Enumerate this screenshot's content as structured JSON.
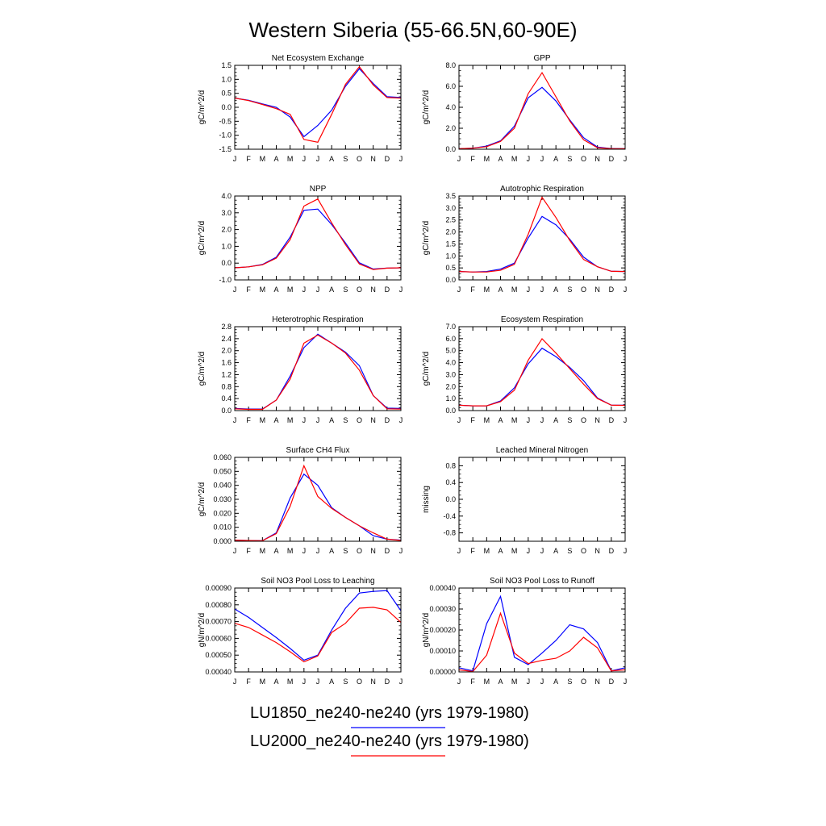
{
  "figure": {
    "title": "Western Siberia (55-66.5N,60-90E)",
    "months": [
      "J",
      "F",
      "M",
      "A",
      "M",
      "J",
      "J",
      "A",
      "S",
      "O",
      "N",
      "D",
      "J"
    ],
    "colors": {
      "LU1850": "#0000ff",
      "LU2000": "#ff0000"
    }
  },
  "legend": [
    {
      "label": "LU1850_ne240-ne240 (yrs 1979-1980)",
      "color": "#0000ff"
    },
    {
      "label": "LU2000_ne240-ne240 (yrs 1979-1980)",
      "color": "#ff0000"
    }
  ],
  "chart_data": [
    {
      "type": "line",
      "title": "Net Ecosystem Exchange",
      "ylabel": "gC/m^2/d",
      "ylim": [
        -1.5,
        1.5
      ],
      "yticks": [
        -1.5,
        -1.0,
        -0.5,
        0.0,
        0.5,
        1.0,
        1.5
      ],
      "ytick_labels": [
        "-1.5",
        "-1.0",
        "-0.5",
        "0.0",
        "0.5",
        "1.0",
        "1.5"
      ],
      "series": [
        {
          "values": [
            0.33,
            0.25,
            0.12,
            0.0,
            -0.35,
            -1.05,
            -0.65,
            -0.1,
            0.75,
            1.38,
            0.85,
            0.38,
            0.35
          ],
          "color": "#0000ff"
        },
        {
          "values": [
            0.33,
            0.24,
            0.1,
            -0.05,
            -0.25,
            -1.15,
            -1.25,
            -0.25,
            0.82,
            1.45,
            0.8,
            0.35,
            0.33
          ],
          "color": "#ff0000"
        }
      ]
    },
    {
      "type": "line",
      "title": "GPP",
      "ylabel": "gC/m^2/d",
      "ylim": [
        0,
        8
      ],
      "yticks": [
        0,
        2,
        4,
        6,
        8
      ],
      "ytick_labels": [
        "0.0",
        "2.0",
        "4.0",
        "6.0",
        "8.0"
      ],
      "series": [
        {
          "values": [
            0.05,
            0.1,
            0.3,
            0.8,
            2.2,
            4.9,
            5.9,
            4.6,
            2.8,
            1.1,
            0.2,
            0.06,
            0.05
          ],
          "color": "#0000ff"
        },
        {
          "values": [
            0.05,
            0.1,
            0.25,
            0.75,
            2.0,
            5.3,
            7.3,
            5.0,
            2.7,
            0.9,
            0.15,
            0.05,
            0.05
          ],
          "color": "#ff0000"
        }
      ]
    },
    {
      "type": "line",
      "title": "NPP",
      "ylabel": "gC/m^2/d",
      "ylim": [
        -1,
        4
      ],
      "yticks": [
        -1,
        0,
        1,
        2,
        3,
        4
      ],
      "ytick_labels": [
        "-1.0",
        "0.0",
        "1.0",
        "2.0",
        "3.0",
        "4.0"
      ],
      "series": [
        {
          "values": [
            -0.28,
            -0.22,
            -0.08,
            0.35,
            1.55,
            3.15,
            3.22,
            2.3,
            1.2,
            0.02,
            -0.35,
            -0.3,
            -0.28
          ],
          "color": "#0000ff"
        },
        {
          "values": [
            -0.28,
            -0.22,
            -0.1,
            0.3,
            1.4,
            3.4,
            3.82,
            2.4,
            1.1,
            -0.05,
            -0.38,
            -0.3,
            -0.28
          ],
          "color": "#ff0000"
        }
      ]
    },
    {
      "type": "line",
      "title": "Autotrophic Respiration",
      "ylabel": "gC/m^2/d",
      "ylim": [
        0,
        3.5
      ],
      "yticks": [
        0,
        0.5,
        1.0,
        1.5,
        2.0,
        2.5,
        3.0,
        3.5
      ],
      "ytick_labels": [
        "0.0",
        "0.5",
        "1.0",
        "1.5",
        "2.0",
        "2.5",
        "3.0",
        "3.5"
      ],
      "series": [
        {
          "values": [
            0.35,
            0.33,
            0.35,
            0.45,
            0.7,
            1.75,
            2.65,
            2.3,
            1.7,
            0.95,
            0.55,
            0.36,
            0.35
          ],
          "color": "#0000ff"
        },
        {
          "values": [
            0.35,
            0.33,
            0.33,
            0.4,
            0.65,
            1.9,
            3.45,
            2.6,
            1.65,
            0.85,
            0.55,
            0.36,
            0.35
          ],
          "color": "#ff0000"
        }
      ]
    },
    {
      "type": "line",
      "title": "Heterotrophic Respiration",
      "ylabel": "gC/m^2/d",
      "ylim": [
        0,
        2.8
      ],
      "yticks": [
        0,
        0.4,
        0.8,
        1.2,
        1.6,
        2.0,
        2.4,
        2.8
      ],
      "ytick_labels": [
        "0.0",
        "0.4",
        "0.8",
        "1.2",
        "1.6",
        "2.0",
        "2.4",
        "2.8"
      ],
      "series": [
        {
          "values": [
            0.07,
            0.05,
            0.05,
            0.35,
            1.15,
            2.1,
            2.55,
            2.25,
            1.95,
            1.5,
            0.5,
            0.08,
            0.07
          ],
          "color": "#0000ff"
        },
        {
          "values": [
            0.06,
            0.04,
            0.04,
            0.35,
            1.05,
            2.25,
            2.52,
            2.25,
            1.92,
            1.35,
            0.5,
            0.06,
            0.05
          ],
          "color": "#ff0000"
        }
      ]
    },
    {
      "type": "line",
      "title": "Ecosystem Respiration",
      "ylabel": "gC/m^2/d",
      "ylim": [
        0,
        7
      ],
      "yticks": [
        0,
        1,
        2,
        3,
        4,
        5,
        6,
        7
      ],
      "ytick_labels": [
        "0.0",
        "1.0",
        "2.0",
        "3.0",
        "4.0",
        "5.0",
        "6.0",
        "7.0"
      ],
      "series": [
        {
          "values": [
            0.45,
            0.4,
            0.4,
            0.8,
            1.9,
            3.9,
            5.2,
            4.5,
            3.6,
            2.5,
            1.05,
            0.45,
            0.45
          ],
          "color": "#0000ff"
        },
        {
          "values": [
            0.45,
            0.4,
            0.4,
            0.75,
            1.7,
            4.2,
            6.0,
            4.8,
            3.5,
            2.2,
            1.0,
            0.45,
            0.44
          ],
          "color": "#ff0000"
        }
      ]
    },
    {
      "type": "line",
      "title": "Surface CH4 Flux",
      "ylabel": "gC/m^2/d",
      "ylim": [
        0,
        0.06
      ],
      "yticks": [
        0,
        0.01,
        0.02,
        0.03,
        0.04,
        0.05,
        0.06
      ],
      "ytick_labels": [
        "0.000",
        "0.010",
        "0.020",
        "0.030",
        "0.040",
        "0.050",
        "0.060"
      ],
      "series": [
        {
          "values": [
            0.0008,
            0.0005,
            0.0004,
            0.006,
            0.031,
            0.048,
            0.04,
            0.024,
            0.017,
            0.011,
            0.004,
            0.0015,
            0.0008
          ],
          "color": "#0000ff"
        },
        {
          "values": [
            0.0008,
            0.0005,
            0.0004,
            0.0055,
            0.025,
            0.054,
            0.032,
            0.0235,
            0.017,
            0.011,
            0.006,
            0.0015,
            0.0006
          ],
          "color": "#ff0000"
        }
      ]
    },
    {
      "type": "line",
      "title": "Leached Mineral Nitrogen",
      "ylabel": "missing",
      "ylim": [
        -1,
        1
      ],
      "yticks": [
        -0.8,
        -0.4,
        0.0,
        0.4,
        0.8
      ],
      "ytick_labels": [
        "-0.8",
        "-0.4",
        "0.0",
        "0.4",
        "0.8"
      ],
      "series": []
    },
    {
      "type": "line",
      "title": "Soil NO3 Pool Loss to Leaching",
      "ylabel": "gN/m^2/d",
      "ylim": [
        0.0004,
        0.0009
      ],
      "yticks": [
        0.0004,
        0.0005,
        0.0006,
        0.0007,
        0.0008,
        0.0009
      ],
      "ytick_labels": [
        "0.00040",
        "0.00050",
        "0.00060",
        "0.00070",
        "0.00080",
        "0.00090"
      ],
      "series": [
        {
          "values": [
            0.000775,
            0.000725,
            0.000665,
            0.000605,
            0.00054,
            0.00047,
            0.0005,
            0.00065,
            0.00078,
            0.00087,
            0.00088,
            0.000885,
            0.000765
          ],
          "color": "#0000ff"
        },
        {
          "values": [
            0.00069,
            0.000665,
            0.00062,
            0.000575,
            0.00052,
            0.00046,
            0.000495,
            0.000635,
            0.00069,
            0.00078,
            0.000785,
            0.00077,
            0.000695
          ],
          "color": "#ff0000"
        }
      ]
    },
    {
      "type": "line",
      "title": "Soil NO3 Pool Loss to Runoff",
      "ylabel": "gN/m^2/d",
      "ylim": [
        0,
        0.0004
      ],
      "yticks": [
        0,
        0.0001,
        0.0002,
        0.0003,
        0.0004
      ],
      "ytick_labels": [
        "0.00000",
        "0.00010",
        "0.00020",
        "0.00030",
        "0.00040"
      ],
      "series": [
        {
          "values": [
            2e-05,
            5e-06,
            0.00023,
            0.00036,
            7e-05,
            3.5e-05,
            9e-05,
            0.00015,
            0.000225,
            0.000205,
            0.00014,
            5e-06,
            2e-05
          ],
          "color": "#0000ff"
        },
        {
          "values": [
            1e-05,
            2e-06,
            8e-05,
            0.00028,
            9e-05,
            4e-05,
            5.5e-05,
            6.5e-05,
            0.0001,
            0.000165,
            0.000115,
            5e-06,
            1e-05
          ],
          "color": "#ff0000"
        }
      ]
    }
  ]
}
